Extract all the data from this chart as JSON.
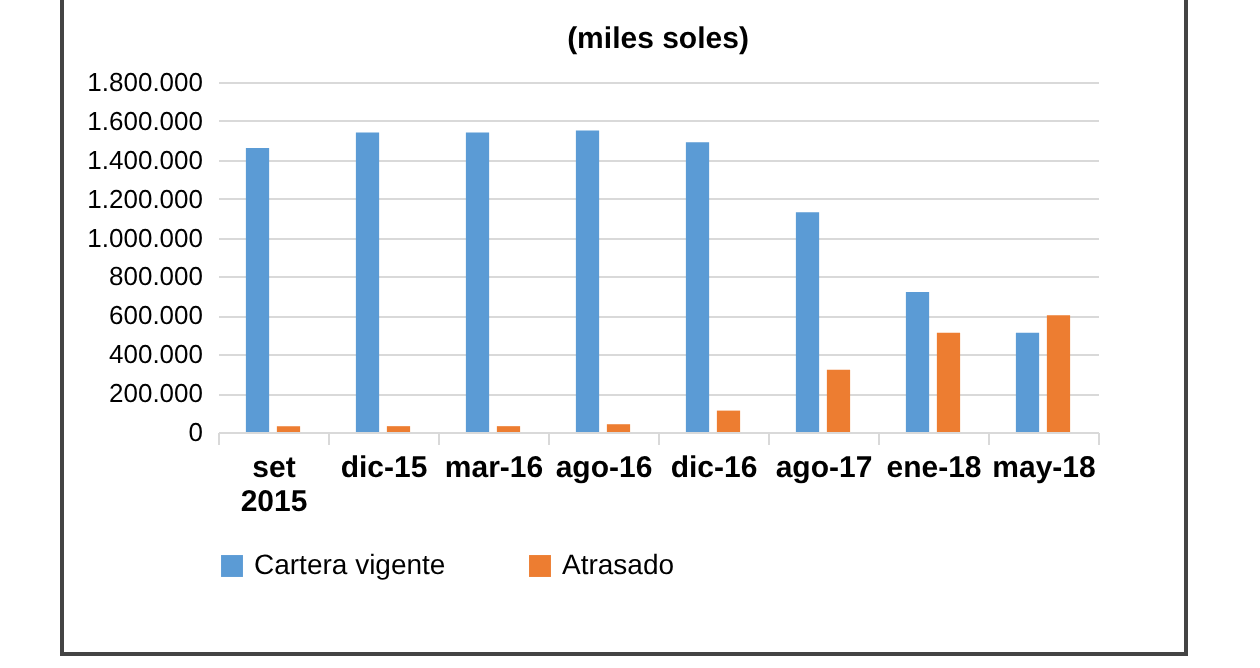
{
  "chart_data": {
    "type": "bar",
    "title": "(miles soles)",
    "categories": [
      "set 2015",
      "dic-15",
      "mar-16",
      "ago-16",
      "dic-16",
      "ago-17",
      "ene-18",
      "may-18"
    ],
    "series": [
      {
        "name": "Cartera vigente",
        "color": "#5b9bd5",
        "values": [
          1460000,
          1540000,
          1540000,
          1550000,
          1490000,
          1130000,
          720000,
          510000
        ]
      },
      {
        "name": "Atrasado",
        "color": "#ed7d31",
        "values": [
          30000,
          30000,
          30000,
          40000,
          110000,
          320000,
          510000,
          600000
        ]
      }
    ],
    "ylim": [
      0,
      1800000
    ],
    "yticks": [
      {
        "value": 0,
        "label": "0"
      },
      {
        "value": 200000,
        "label": "200.000"
      },
      {
        "value": 400000,
        "label": "400.000"
      },
      {
        "value": 600000,
        "label": "600.000"
      },
      {
        "value": 800000,
        "label": "800.000"
      },
      {
        "value": 1000000,
        "label": "1.000.000"
      },
      {
        "value": 1200000,
        "label": "1.200.000"
      },
      {
        "value": 1400000,
        "label": "1.400.000"
      },
      {
        "value": 1600000,
        "label": "1.600.000"
      },
      {
        "value": 1800000,
        "label": "1.800.000"
      }
    ],
    "grid": "y",
    "legend": "bottom"
  }
}
